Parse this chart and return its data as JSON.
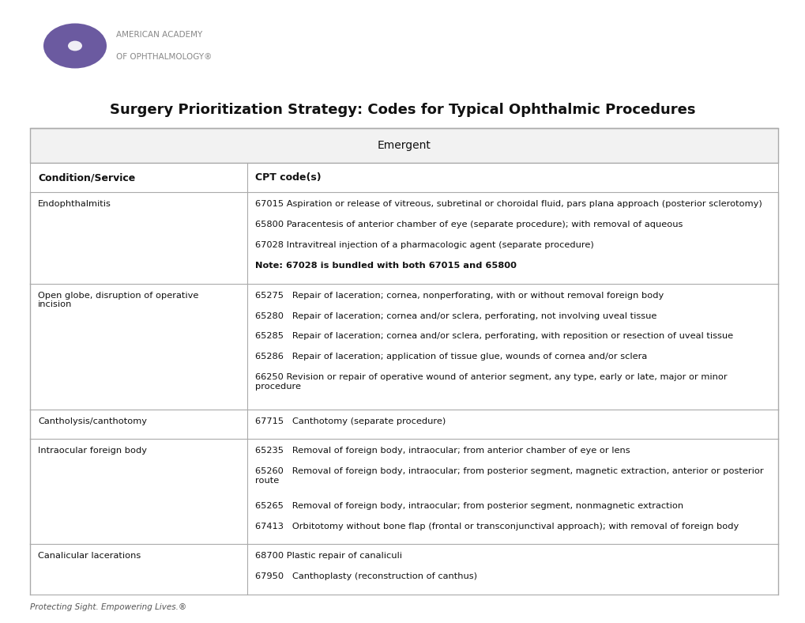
{
  "title": "Surgery Prioritization Strategy: Codes for Typical Ophthalmic Procedures",
  "section_header": "Emergent",
  "col1_header": "Condition/Service",
  "col2_header": "CPT code(s)",
  "background_color": "#ffffff",
  "footer_text": "Protecting Sight. Empowering Lives.®",
  "logo_text_line1": "AMERICAN ACADEMY",
  "logo_text_line2": "OF OPHTHALMOLOGY®",
  "rows": [
    {
      "condition": "Endophthalmitis",
      "codes": [
        {
          "bold": false,
          "text": "67015 Aspiration or release of vitreous, subretinal or choroidal fluid, pars plana approach (posterior sclerotomy)"
        },
        {
          "bold": false,
          "text": "65800 Paracentesis of anterior chamber of eye (separate procedure); with removal of aqueous"
        },
        {
          "bold": false,
          "text": "67028 Intravitreal injection of a pharmacologic agent (separate procedure)"
        },
        {
          "bold": true,
          "text": "Note: 67028 is bundled with both 67015 and 65800"
        }
      ]
    },
    {
      "condition": "Open globe, disruption of operative\nincision",
      "codes": [
        {
          "bold": false,
          "text": "65275   Repair of laceration; cornea, nonperforating, with or without removal foreign body"
        },
        {
          "bold": false,
          "text": "65280   Repair of laceration; cornea and/or sclera, perforating, not involving uveal tissue"
        },
        {
          "bold": false,
          "text": "65285   Repair of laceration; cornea and/or sclera, perforating, with reposition or resection of uveal tissue"
        },
        {
          "bold": false,
          "text": "65286   Repair of laceration; application of tissue glue, wounds of cornea and/or sclera"
        },
        {
          "bold": false,
          "text": "66250 Revision or repair of operative wound of anterior segment, any type, early or late, major or minor\nprocedure"
        }
      ]
    },
    {
      "condition": "Cantholysis/canthotomy",
      "codes": [
        {
          "bold": false,
          "text": "67715   Canthotomy (separate procedure)"
        }
      ]
    },
    {
      "condition": "Intraocular foreign body",
      "codes": [
        {
          "bold": false,
          "text": "65235   Removal of foreign body, intraocular; from anterior chamber of eye or lens"
        },
        {
          "bold": false,
          "text": "65260   Removal of foreign body, intraocular; from posterior segment, magnetic extraction, anterior or posterior\nroute"
        },
        {
          "bold": false,
          "text": "65265   Removal of foreign body, intraocular; from posterior segment, nonmagnetic extraction"
        },
        {
          "bold": false,
          "text": "67413   Orbitotomy without bone flap (frontal or transconjunctival approach); with removal of foreign body"
        }
      ]
    },
    {
      "condition": "Canalicular lacerations",
      "codes": [
        {
          "bold": false,
          "text": "68700 Plastic repair of canaliculi"
        },
        {
          "bold": false,
          "text": "67950   Canthoplasty (reconstruction of canthus)"
        }
      ]
    }
  ]
}
